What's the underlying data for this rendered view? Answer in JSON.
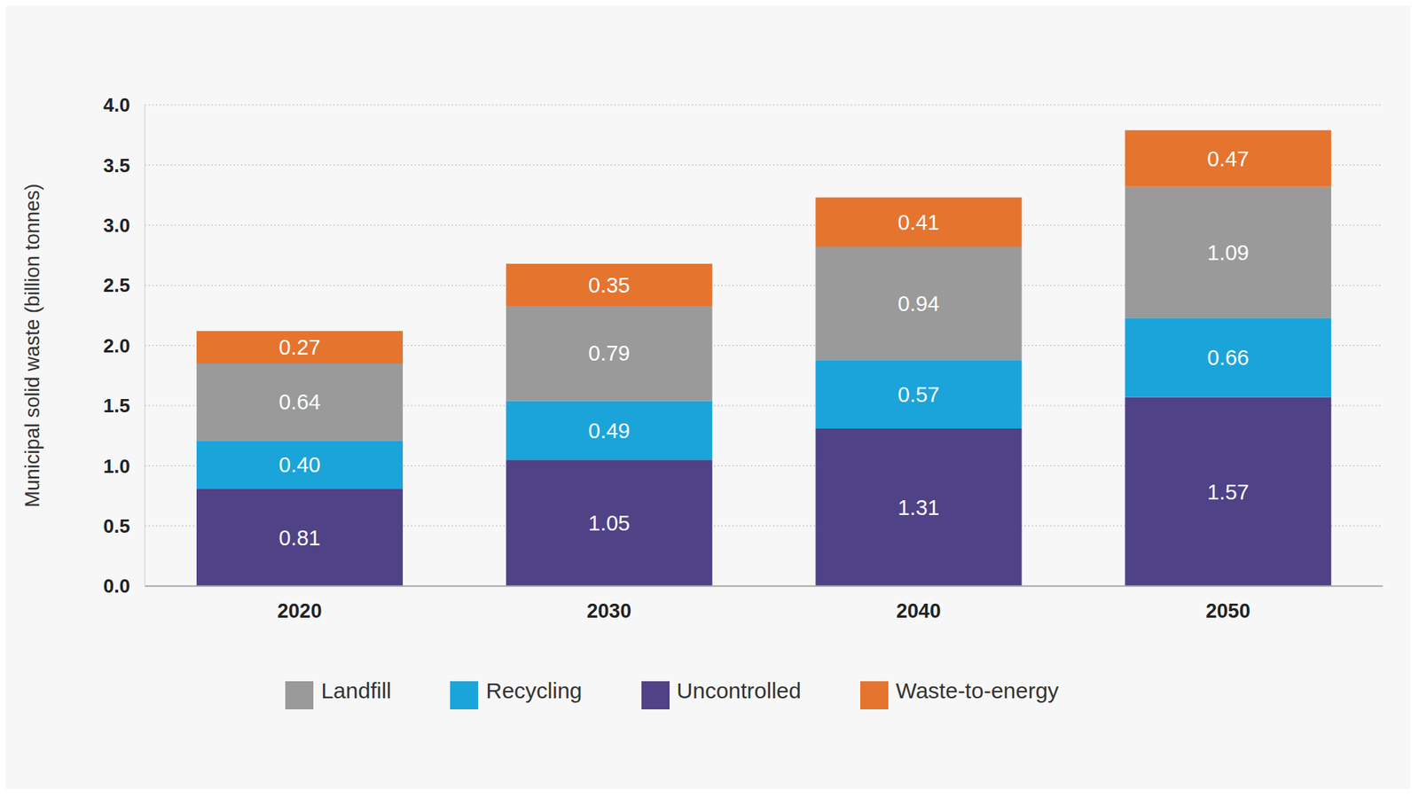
{
  "chart_data": {
    "type": "bar",
    "stacked": true,
    "grid": true,
    "legend": "bottom",
    "data_labels": true,
    "ylabel": "Municipal solid waste (billion tonnes)",
    "categories": [
      "2020",
      "2030",
      "2040",
      "2050"
    ],
    "series": [
      {
        "name": "Uncontrolled",
        "color": "#4f4287",
        "values": [
          0.81,
          1.05,
          1.31,
          1.57
        ],
        "value_labels": [
          "0.81",
          "1.05",
          "1.31",
          "1.57"
        ]
      },
      {
        "name": "Recycling",
        "color": "#1ba4da",
        "values": [
          0.4,
          0.49,
          0.57,
          0.66
        ],
        "value_labels": [
          "0.40",
          "0.49",
          "0.57",
          "0.66"
        ]
      },
      {
        "name": "Landfill",
        "color": "#9a9a9a",
        "values": [
          0.64,
          0.79,
          0.94,
          1.09
        ],
        "value_labels": [
          "0.64",
          "0.79",
          "0.94",
          "1.09"
        ]
      },
      {
        "name": "Waste-to-energy",
        "color": "#e5742f",
        "values": [
          0.27,
          0.35,
          0.41,
          0.47
        ],
        "value_labels": [
          "0.27",
          "0.35",
          "0.41",
          "0.47"
        ]
      }
    ],
    "ylim": [
      0,
      4
    ],
    "yticks": [
      {
        "value": 0,
        "label": "0.0"
      },
      0.5,
      {
        "value": 1,
        "label": "1.0"
      },
      1.5,
      {
        "value": 2,
        "label": "2.0"
      },
      2.5,
      {
        "value": 3,
        "label": "3.0"
      },
      3.5,
      {
        "value": 4,
        "label": "4.0"
      }
    ]
  }
}
